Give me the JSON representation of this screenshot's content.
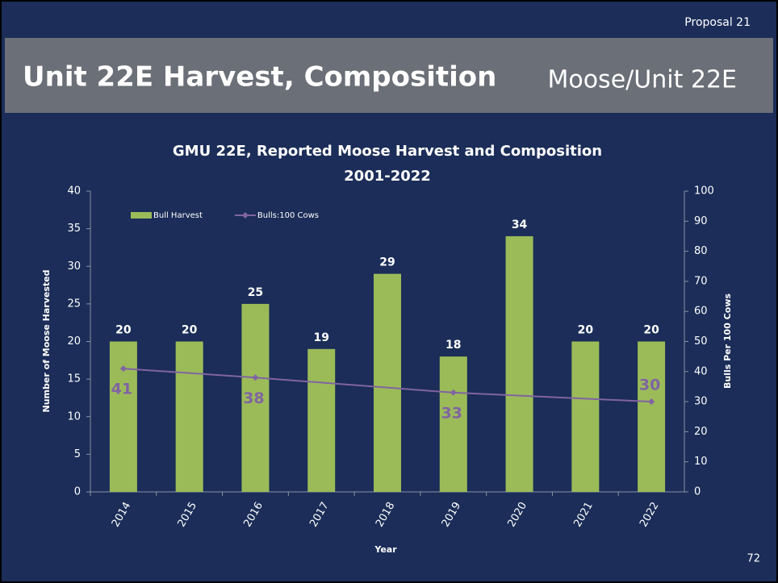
{
  "page": {
    "header": "Proposal 21",
    "title": "Unit 22E Harvest, Composition",
    "subtitle": "Moose/Unit 22E",
    "page_number": "72"
  },
  "chart_data": {
    "type": "bar",
    "title": "GMU 22E, Reported Moose Harvest and Composition",
    "subtitle": "2001-2022",
    "xlabel": "Year",
    "ylabel": "Number of Moose Harvested",
    "y2label": "Bulls Per 100 Cows",
    "categories": [
      "2014",
      "2015",
      "2016",
      "2017",
      "2018",
      "2019",
      "2020",
      "2021",
      "2022"
    ],
    "series": [
      {
        "name": "Bull Harvest",
        "type": "bar",
        "color": "#9bbb59",
        "values": [
          20,
          20,
          25,
          19,
          29,
          18,
          34,
          20,
          20
        ]
      },
      {
        "name": "Bulls:100 Cows",
        "type": "line",
        "axis": "y2",
        "color": "#8064a2",
        "connect_gaps": true,
        "values": [
          41,
          null,
          38,
          null,
          null,
          33,
          null,
          null,
          30
        ]
      }
    ],
    "ylim": [
      0,
      40
    ],
    "yticks": [
      0,
      5,
      10,
      15,
      20,
      25,
      30,
      35,
      40
    ],
    "y2lim": [
      0,
      100
    ],
    "y2ticks": [
      0,
      10,
      20,
      30,
      40,
      50,
      60,
      70,
      80,
      90,
      100
    ],
    "legend": "top-left"
  }
}
